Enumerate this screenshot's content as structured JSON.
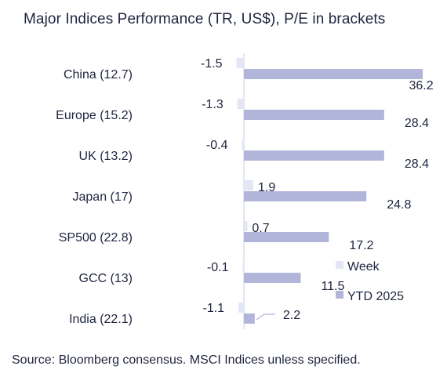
{
  "header": {
    "title": "Major Indices Performance (TR, US$), P/E in brackets"
  },
  "footer": {
    "source": "Source: Bloomberg consensus. MSCI Indices unless specified."
  },
  "colors": {
    "week": "#e3e7f5",
    "ytd": "#b2b5da",
    "axis": "#c9cde6",
    "text": "#1f2440"
  },
  "chart_data": {
    "type": "bar",
    "orientation": "horizontal",
    "categories": [
      "China (12.7)",
      "Europe (15.2)",
      "UK (13.2)",
      "Japan (17)",
      "SP500 (22.8)",
      "GCC (13)",
      "India (22.1)"
    ],
    "series": [
      {
        "name": "Week",
        "values": [
          -1.5,
          -1.3,
          -0.4,
          1.9,
          0.7,
          -0.1,
          -1.1
        ],
        "labels": [
          "-1.5",
          "-1.3",
          "-0.4",
          "1.9",
          "0.7",
          "-0.1",
          "-1.1"
        ]
      },
      {
        "name": "YTD 2025",
        "values": [
          36.2,
          28.4,
          28.4,
          24.8,
          17.2,
          11.5,
          2.2
        ],
        "labels": [
          "36.2",
          "28.4",
          "28.4",
          "24.8",
          "17.2",
          "11.5",
          "2.2"
        ]
      }
    ],
    "legend_position": "bottom-right",
    "grid": false
  }
}
